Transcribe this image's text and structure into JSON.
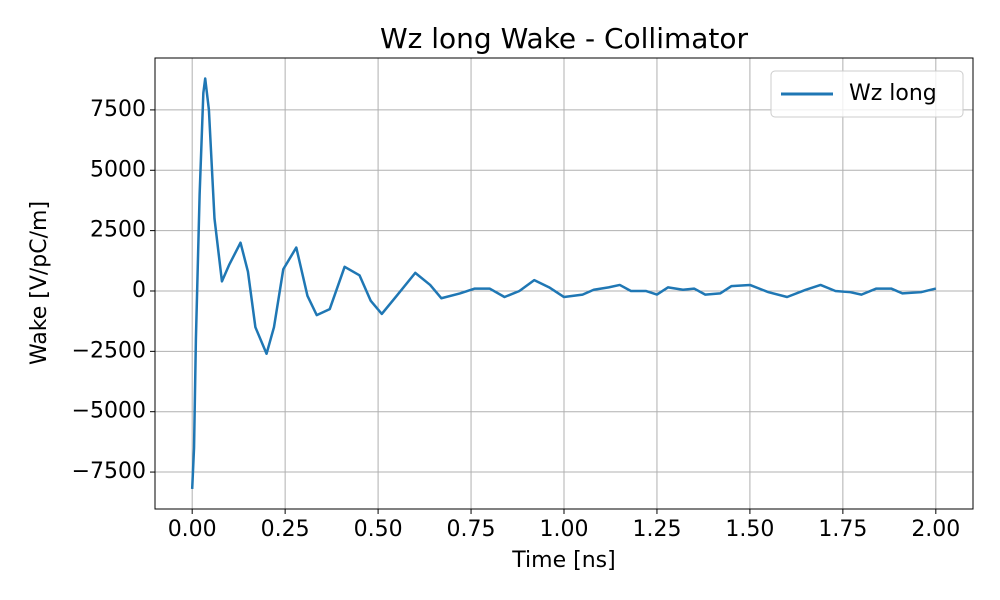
{
  "chart_data": {
    "type": "line",
    "title": "Wz long Wake - Collimator",
    "x_label": "Time [ns]",
    "y_label": "Wake [V/pC/m]",
    "x": [
      0.0,
      0.005,
      0.01,
      0.02,
      0.03,
      0.035,
      0.045,
      0.06,
      0.08,
      0.1,
      0.13,
      0.15,
      0.17,
      0.2,
      0.22,
      0.245,
      0.28,
      0.31,
      0.335,
      0.37,
      0.41,
      0.45,
      0.48,
      0.51,
      0.55,
      0.6,
      0.64,
      0.67,
      0.72,
      0.76,
      0.8,
      0.84,
      0.88,
      0.92,
      0.96,
      1.0,
      1.05,
      1.08,
      1.12,
      1.15,
      1.18,
      1.22,
      1.25,
      1.28,
      1.32,
      1.35,
      1.38,
      1.42,
      1.45,
      1.5,
      1.55,
      1.6,
      1.65,
      1.69,
      1.73,
      1.77,
      1.8,
      1.84,
      1.88,
      1.91,
      1.96,
      2.0
    ],
    "series": [
      {
        "name": "Wz long",
        "color": "#1f77b4",
        "values": [
          -8200,
          -6500,
          -2000,
          4000,
          8200,
          8800,
          7500,
          3000,
          400,
          1100,
          2000,
          800,
          -1500,
          -2600,
          -1500,
          900,
          1800,
          -200,
          -1000,
          -750,
          1000,
          650,
          -400,
          -950,
          -200,
          750,
          250,
          -300,
          -100,
          100,
          100,
          -250,
          0,
          450,
          150,
          -250,
          -150,
          50,
          150,
          250,
          0,
          0,
          -150,
          150,
          50,
          100,
          -150,
          -100,
          200,
          250,
          -50,
          -250,
          50,
          250,
          0,
          -50,
          -150,
          100,
          100,
          -100,
          -50,
          100
        ]
      }
    ],
    "xlim": [
      -0.1,
      2.1
    ],
    "ylim": [
      -9030,
      9650
    ],
    "xticks": [
      {
        "value": 0,
        "label": "0.00"
      },
      {
        "value": 0.25,
        "label": "0.25"
      },
      {
        "value": 0.5,
        "label": "0.50"
      },
      {
        "value": 0.75,
        "label": "0.75"
      },
      {
        "value": 1,
        "label": "1.00"
      },
      {
        "value": 1.25,
        "label": "1.25"
      },
      {
        "value": 1.5,
        "label": "1.50"
      },
      {
        "value": 1.75,
        "label": "1.75"
      },
      {
        "value": 2,
        "label": "2.00"
      }
    ],
    "yticks": [
      {
        "value": -7500,
        "label": "−7500"
      },
      {
        "value": -5000,
        "label": "−5000"
      },
      {
        "value": -2500,
        "label": "−2500"
      },
      0,
      2500,
      5000,
      7500
    ],
    "grid": true,
    "legend": "upper right"
  }
}
